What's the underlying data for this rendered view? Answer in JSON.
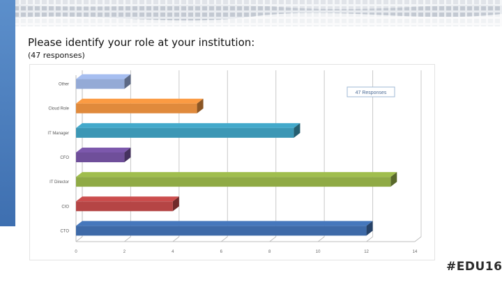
{
  "slide": {
    "title": "Please identify your role at your institution:",
    "subtitle": "(47 responses)",
    "hashtag": "#EDU16"
  },
  "chart_data": {
    "type": "bar",
    "orientation": "horizontal",
    "title": "",
    "xlabel": "",
    "ylabel": "",
    "legend": "47 Responses",
    "legend_placement": "top-right",
    "grid": true,
    "xlim": [
      0,
      14
    ],
    "x_ticks": [
      0,
      2,
      4,
      6,
      8,
      10,
      12,
      14
    ],
    "categories": [
      "Other",
      "Cloud Role",
      "IT Manager",
      "CFO",
      "IT Director",
      "CIO",
      "CTO"
    ],
    "values": [
      2,
      5,
      9,
      2,
      13,
      4,
      12
    ],
    "colors": [
      "#94aad6",
      "#e08a3c",
      "#3c97b5",
      "#6f4f9a",
      "#8faa45",
      "#b54545",
      "#3e6aa8"
    ]
  }
}
